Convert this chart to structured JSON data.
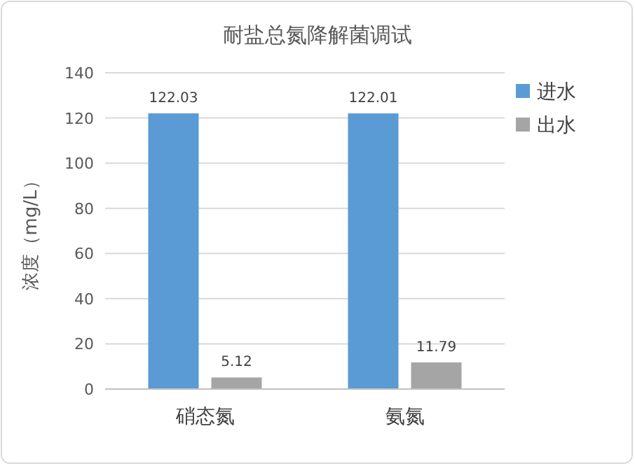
{
  "chart_data": {
    "type": "bar",
    "title": "耐盐总氮降解菌调试",
    "ylabel": "浓度（mg/L）",
    "categories": [
      "硝态氮",
      "氨氮"
    ],
    "series": [
      {
        "name": "进水",
        "color": "#5b9bd5",
        "values": [
          122.03,
          122.01
        ]
      },
      {
        "name": "出水",
        "color": "#a5a5a5",
        "values": [
          5.12,
          11.79
        ]
      }
    ],
    "ylim": [
      0,
      140
    ],
    "yticks": [
      0,
      20,
      40,
      60,
      80,
      100,
      120,
      140
    ],
    "grid": "y",
    "legend": "top right",
    "data_labels": true
  }
}
